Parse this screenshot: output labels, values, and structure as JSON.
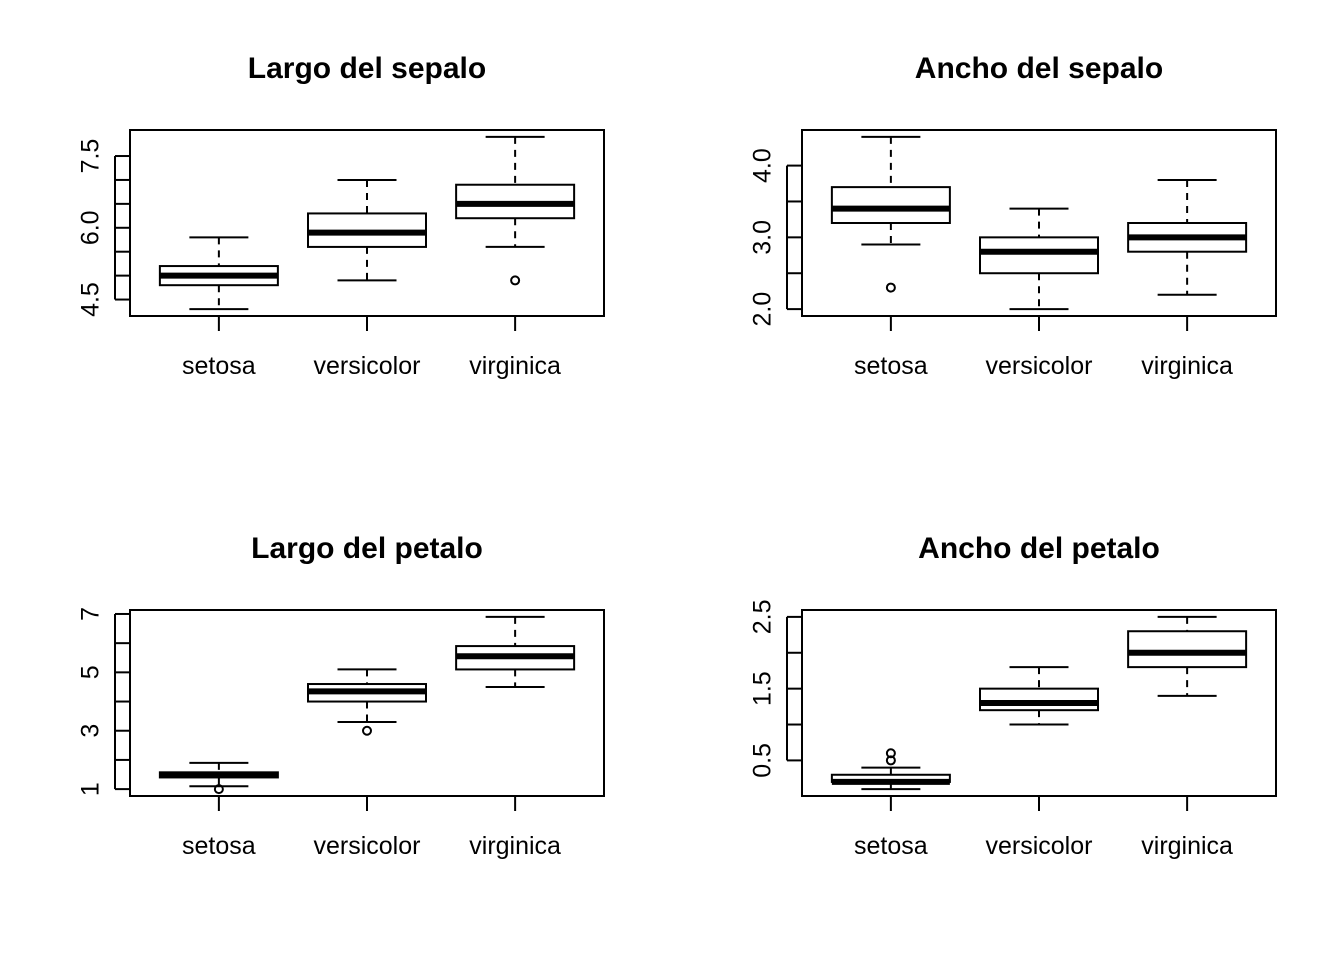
{
  "chart_data": [
    {
      "type": "boxplot",
      "title": "Largo del sepalo",
      "categories": [
        "setosa",
        "versicolor",
        "virginica"
      ],
      "ylim": [
        4.3,
        7.9
      ],
      "yticks": [
        4.5,
        6.0,
        7.5
      ],
      "ytick_labels": [
        "4.5",
        "6.0",
        "7.5"
      ],
      "yminor_step": 0.5,
      "boxes": [
        {
          "whisker_low": 4.3,
          "q1": 4.8,
          "median": 5.0,
          "q3": 5.2,
          "whisker_high": 5.8,
          "outliers": []
        },
        {
          "whisker_low": 4.9,
          "q1": 5.6,
          "median": 5.9,
          "q3": 6.3,
          "whisker_high": 7.0,
          "outliers": []
        },
        {
          "whisker_low": 5.6,
          "q1": 6.2,
          "median": 6.5,
          "q3": 6.9,
          "whisker_high": 7.9,
          "outliers": [
            4.9
          ]
        }
      ]
    },
    {
      "type": "boxplot",
      "title": "Ancho del sepalo",
      "categories": [
        "setosa",
        "versicolor",
        "virginica"
      ],
      "ylim": [
        2.0,
        4.4
      ],
      "yticks": [
        2.0,
        3.0,
        4.0
      ],
      "ytick_labels": [
        "2.0",
        "3.0",
        "4.0"
      ],
      "yminor_step": 0.5,
      "boxes": [
        {
          "whisker_low": 2.9,
          "q1": 3.2,
          "median": 3.4,
          "q3": 3.7,
          "whisker_high": 4.4,
          "outliers": [
            2.3
          ]
        },
        {
          "whisker_low": 2.0,
          "q1": 2.5,
          "median": 2.8,
          "q3": 3.0,
          "whisker_high": 3.4,
          "outliers": []
        },
        {
          "whisker_low": 2.2,
          "q1": 2.8,
          "median": 3.0,
          "q3": 3.2,
          "whisker_high": 3.8,
          "outliers": []
        }
      ]
    },
    {
      "type": "boxplot",
      "title": "Largo del petalo",
      "categories": [
        "setosa",
        "versicolor",
        "virginica"
      ],
      "ylim": [
        1.0,
        6.9
      ],
      "yticks": [
        1,
        3,
        5,
        7
      ],
      "ytick_labels": [
        "1",
        "3",
        "5",
        "7"
      ],
      "yminor_step": 1,
      "boxes": [
        {
          "whisker_low": 1.1,
          "q1": 1.4,
          "median": 1.5,
          "q3": 1.575,
          "whisker_high": 1.9,
          "outliers": [
            1.0
          ]
        },
        {
          "whisker_low": 3.3,
          "q1": 4.0,
          "median": 4.35,
          "q3": 4.6,
          "whisker_high": 5.1,
          "outliers": [
            3.0
          ]
        },
        {
          "whisker_low": 4.5,
          "q1": 5.1,
          "median": 5.55,
          "q3": 5.9,
          "whisker_high": 6.9,
          "outliers": []
        }
      ]
    },
    {
      "type": "boxplot",
      "title": "Ancho del petalo",
      "categories": [
        "setosa",
        "versicolor",
        "virginica"
      ],
      "ylim": [
        0.1,
        2.5
      ],
      "yticks": [
        0.5,
        1.5,
        2.5
      ],
      "ytick_labels": [
        "0.5",
        "1.5",
        "2.5"
      ],
      "yminor_step": 0.5,
      "boxes": [
        {
          "whisker_low": 0.1,
          "q1": 0.2,
          "median": 0.2,
          "q3": 0.3,
          "whisker_high": 0.4,
          "outliers": [
            0.5,
            0.6
          ]
        },
        {
          "whisker_low": 1.0,
          "q1": 1.2,
          "median": 1.3,
          "q3": 1.5,
          "whisker_high": 1.8,
          "outliers": []
        },
        {
          "whisker_low": 1.4,
          "q1": 1.8,
          "median": 2.0,
          "q3": 2.3,
          "whisker_high": 2.5,
          "outliers": []
        }
      ]
    }
  ]
}
